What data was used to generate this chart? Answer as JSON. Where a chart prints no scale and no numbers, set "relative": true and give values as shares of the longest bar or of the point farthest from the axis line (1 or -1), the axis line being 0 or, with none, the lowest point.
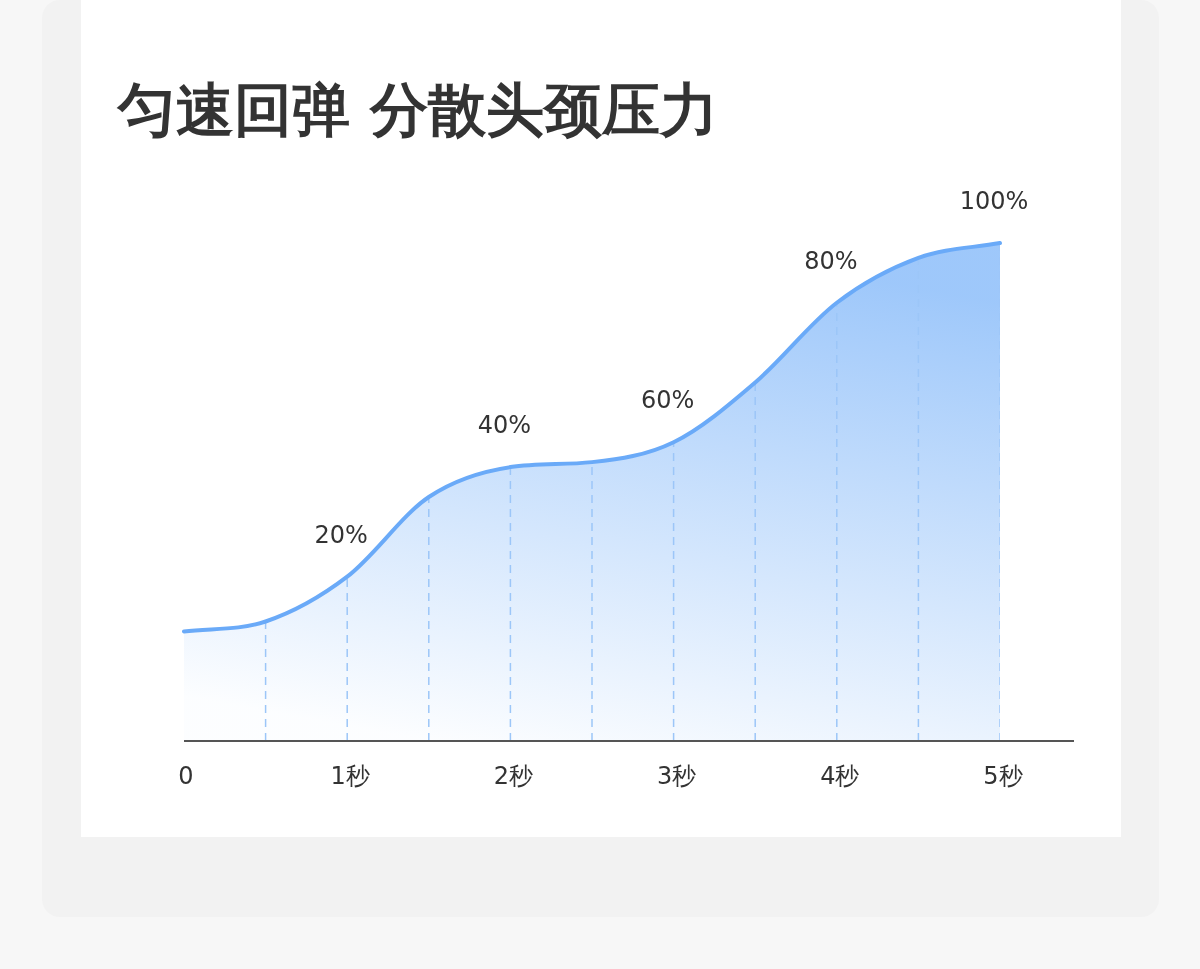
{
  "chart_data": {
    "type": "area",
    "title": "匀速回弹 分散头颈压力",
    "relative": true,
    "grid": "x",
    "categories": [
      "0",
      null,
      "1秒",
      null,
      "2秒",
      null,
      "3秒",
      null,
      "4秒",
      null,
      "5秒"
    ],
    "series": [
      {
        "color": "#6aaaf8",
        "values": [
          0.22,
          0.24,
          0.33,
          0.49,
          0.55,
          0.56,
          0.6,
          0.72,
          0.88,
          0.97,
          1
        ],
        "value_labels": [
          null,
          null,
          null,
          null,
          null,
          null,
          null,
          null,
          null,
          null,
          null
        ]
      }
    ],
    "annotations": [
      {
        "text": "20%",
        "x": "1秒",
        "y": 0.33
      },
      {
        "text": "40%",
        "x": "2秒",
        "y": 0.55
      },
      {
        "text": "60%",
        "x": "3秒",
        "y": 0.6
      },
      {
        "text": "80%",
        "x": "4秒",
        "y": 0.88
      },
      {
        "text": "100%",
        "x": "5秒",
        "y": 1
      }
    ]
  }
}
